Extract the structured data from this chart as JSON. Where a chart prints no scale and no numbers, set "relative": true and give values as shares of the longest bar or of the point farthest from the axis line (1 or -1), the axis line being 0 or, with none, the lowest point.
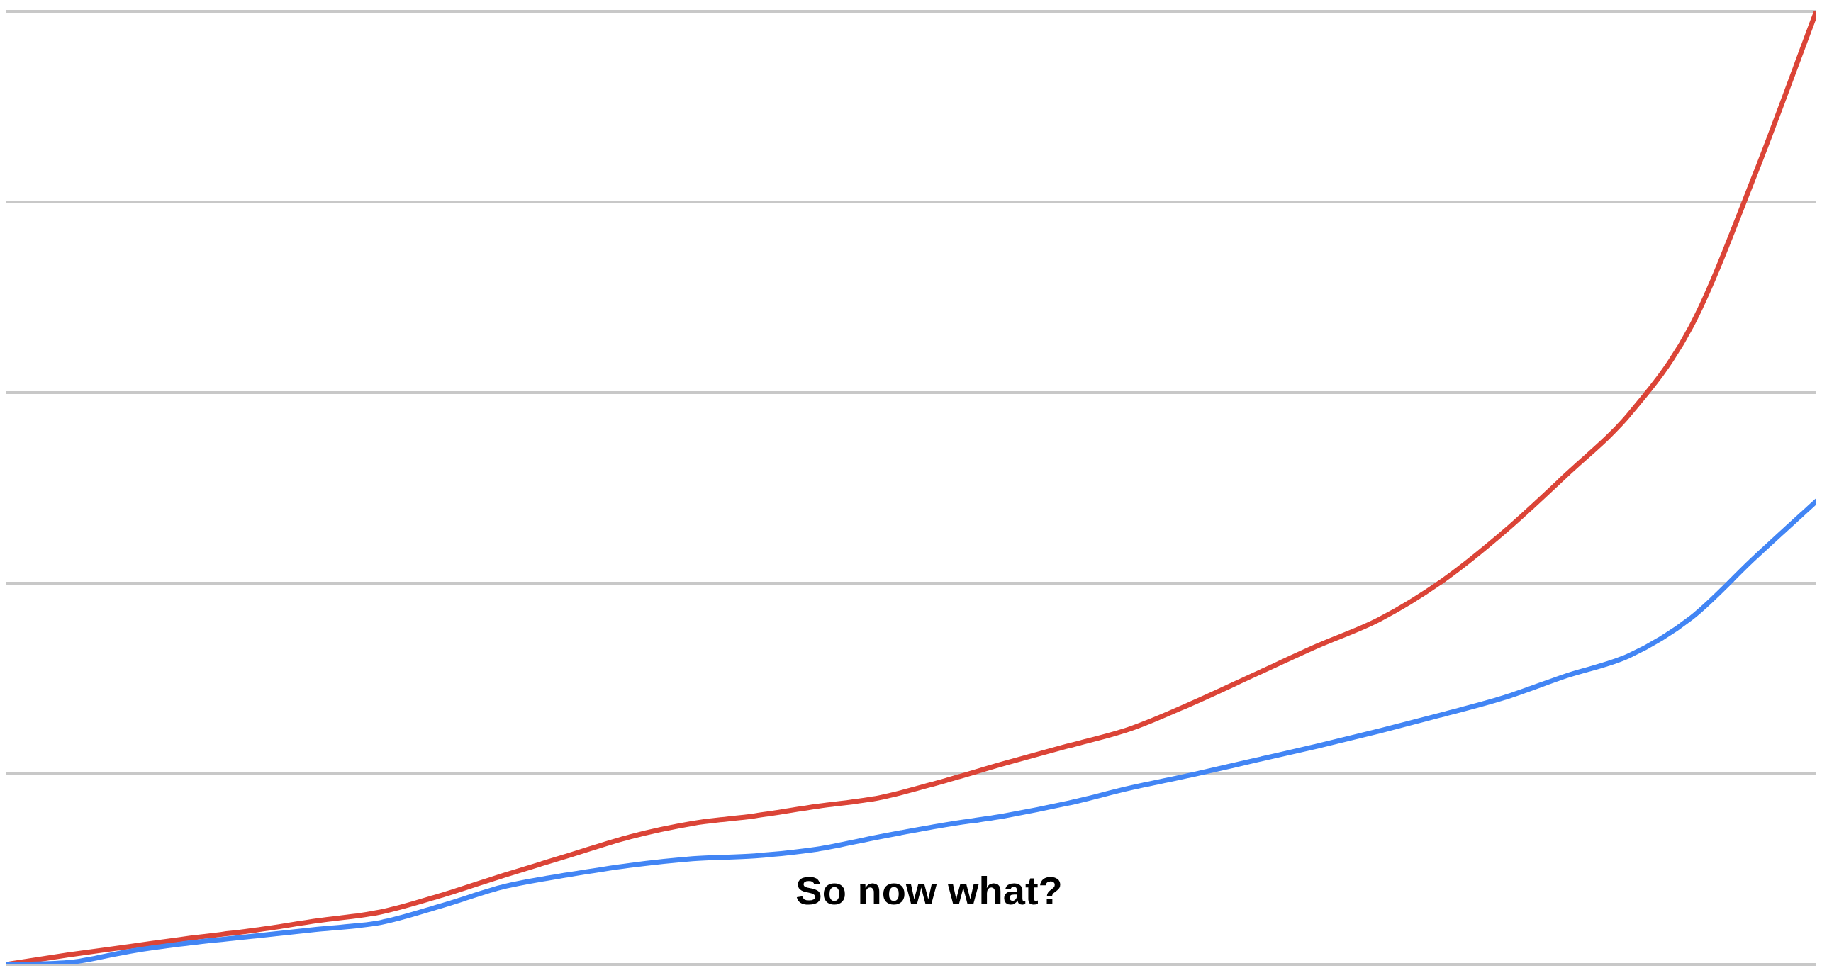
{
  "chart_data": {
    "type": "line",
    "relative": true,
    "grid": true,
    "legend": false,
    "marker": "none",
    "line_style": "solid",
    "categories": [
      null,
      null,
      null,
      null,
      null,
      null,
      null,
      null,
      null,
      null,
      null,
      null,
      null,
      null,
      null,
      null,
      null,
      null,
      null,
      null,
      null,
      null,
      null,
      null,
      null,
      null,
      null,
      null,
      null,
      null
    ],
    "series": [
      {
        "color": "#4285f4",
        "values": [
          0,
          0.002,
          0.014,
          0.023,
          0.03,
          0.037,
          0.044,
          0.062,
          0.082,
          0.094,
          0.104,
          0.111,
          0.114,
          0.121,
          0.134,
          0.146,
          0.156,
          0.169,
          0.185,
          0.199,
          0.214,
          0.229,
          0.245,
          0.262,
          0.28,
          0.303,
          0.324,
          0.364,
          0.426,
          0.486
        ]
      },
      {
        "color": "#db4437",
        "values": [
          0,
          0.01,
          0.019,
          0.028,
          0.036,
          0.046,
          0.055,
          0.073,
          0.094,
          0.114,
          0.134,
          0.148,
          0.156,
          0.166,
          0.175,
          0.192,
          0.211,
          0.229,
          0.247,
          0.274,
          0.304,
          0.334,
          0.362,
          0.402,
          0.454,
          0.514,
          0.577,
          0.67,
          0.826,
          1
        ]
      }
    ],
    "annotations": [
      "So now what?"
    ]
  }
}
